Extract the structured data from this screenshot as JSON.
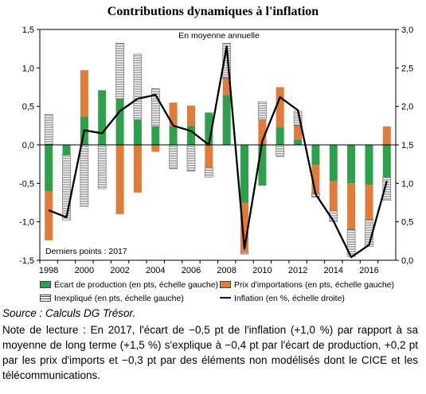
{
  "chart_data": {
    "type": "bar",
    "title": "Contributions dynamiques à l'inflation",
    "annotation_top": "En moyenne annuelle",
    "annotation_bottom": "Derniers points : 2017",
    "x": [
      1998,
      1999,
      2000,
      2001,
      2002,
      2003,
      2004,
      2005,
      2006,
      2007,
      2008,
      2009,
      2010,
      2011,
      2012,
      2013,
      2014,
      2015,
      2016,
      2017
    ],
    "x_tick_labels": [
      "1998",
      "2000",
      "2002",
      "2004",
      "2006",
      "2008",
      "2010",
      "2012",
      "2014",
      "2016"
    ],
    "y_left": {
      "lim": [
        -1.5,
        1.5
      ],
      "ticks": [
        "-1,5",
        "-1,0",
        "-0,5",
        "0,0",
        "0,5",
        "1,0",
        "1,5"
      ]
    },
    "y_right": {
      "lim": [
        0,
        3
      ],
      "ticks": [
        "0,0",
        "0,5",
        "1,0",
        "1,5",
        "2,0",
        "2,5",
        "3,0"
      ]
    },
    "series": [
      {
        "name": "Écart de production (en pts, échelle gauche)",
        "color": "#2ca04a",
        "axis": "left",
        "kind": "stacked-bar",
        "values": [
          -0.6,
          -0.13,
          0.37,
          0.71,
          0.6,
          0.33,
          0.24,
          0.24,
          0.25,
          0.42,
          0.65,
          -0.75,
          -0.53,
          0.23,
          0.07,
          -0.26,
          -0.47,
          -0.5,
          -0.52,
          -0.42
        ]
      },
      {
        "name": "Prix d'importations (en pts, échelle gauche)",
        "color": "#e07b39",
        "axis": "left",
        "kind": "stacked-bar",
        "values": [
          -0.64,
          0.0,
          0.6,
          0.0,
          -0.9,
          -0.62,
          -0.09,
          0.31,
          0.26,
          -0.3,
          0.22,
          -0.65,
          0.33,
          0.52,
          0.18,
          -0.37,
          -0.39,
          -0.6,
          -0.45,
          0.24
        ]
      },
      {
        "name": "Inexpliqué (en pts, échelle gauche)",
        "color": "#ffffff",
        "axis": "left",
        "kind": "stacked-bar-hatched",
        "values": [
          0.4,
          -0.85,
          -0.8,
          -0.57,
          0.72,
          0.85,
          0.49,
          -0.31,
          -0.34,
          -0.12,
          0.45,
          -0.02,
          0.23,
          -0.15,
          0.19,
          -0.05,
          -0.14,
          -0.35,
          -0.35,
          -0.3
        ]
      },
      {
        "name": "Inflation (en %, échelle droite)",
        "color": "#000000",
        "axis": "right",
        "kind": "line",
        "values": [
          0.65,
          0.56,
          1.69,
          1.65,
          1.94,
          2.1,
          2.15,
          1.75,
          1.68,
          1.5,
          2.78,
          0.15,
          1.55,
          2.12,
          1.95,
          0.86,
          0.51,
          0.04,
          0.2,
          1.03
        ]
      }
    ]
  },
  "source": "Source : Calculs DG Trésor.",
  "note": "Note de lecture : En 2017, l'écart de −0,5 pt de l'inflation (+1,0 %) par rapport à sa moyenne de long terme (+1,5 %) s'explique à −0,4 pt par l'écart de production, +0,2 pt par les prix d'imports et −0,3 pt par des éléments non modélisés dont le CICE et les télécommunications."
}
